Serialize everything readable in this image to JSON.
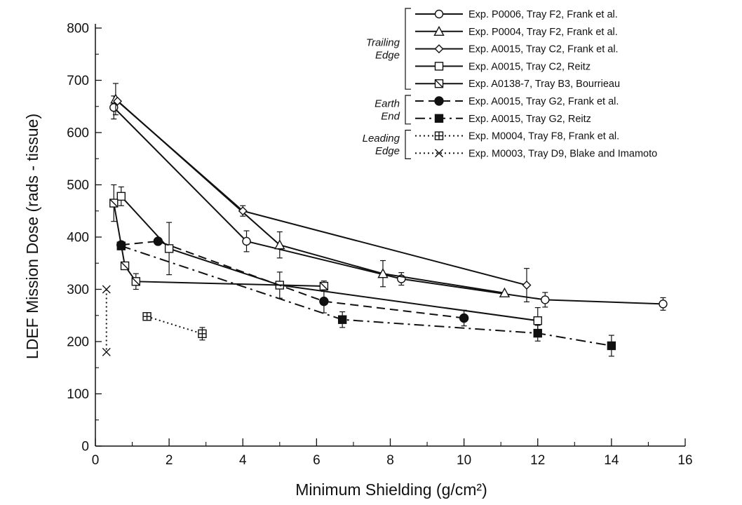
{
  "chart_data": {
    "type": "line",
    "xlabel": "Minimum Shielding (g/cm²)",
    "ylabel": "LDEF Mission Dose (rads - tissue)",
    "xlim": [
      0,
      16
    ],
    "ylim": [
      0,
      800
    ],
    "x_ticks": [
      "0",
      "2",
      "4",
      "6",
      "8",
      "10",
      "12",
      "14",
      "16"
    ],
    "y_ticks": [
      "0",
      "100",
      "200",
      "300",
      "400",
      "500",
      "600",
      "700",
      "800"
    ],
    "grid": false,
    "legend_position": "top-right",
    "legend_groups": [
      {
        "label_lines": [
          "Trailing",
          "Edge"
        ],
        "series": [
          0,
          1,
          2,
          3,
          4
        ]
      },
      {
        "label_lines": [
          "Earth",
          "End"
        ],
        "series": [
          5,
          6
        ]
      },
      {
        "label_lines": [
          "Leading",
          "Edge"
        ],
        "series": [
          7,
          8
        ]
      }
    ],
    "series": [
      {
        "name": "Exp. P0006, Tray F2, Frank et al.",
        "marker": "circle-open",
        "line": "solid",
        "x": [
          0.5,
          4.1,
          8.3,
          12.2,
          15.4
        ],
        "y": [
          648,
          392,
          320,
          280,
          272
        ],
        "err": [
          22,
          20,
          12,
          14,
          12
        ]
      },
      {
        "name": "Exp. P0004, Tray F2, Frank et al.",
        "marker": "triangle-open",
        "line": "solid",
        "x": [
          0.55,
          5.0,
          7.8,
          11.1
        ],
        "y": [
          664,
          385,
          330,
          293
        ],
        "err": [
          30,
          25,
          25,
          0
        ]
      },
      {
        "name": "Exp. A0015, Tray C2, Frank et al.",
        "marker": "diamond-open",
        "line": "solid",
        "x": [
          0.6,
          4.0,
          11.7
        ],
        "y": [
          660,
          450,
          308
        ],
        "err": [
          0,
          10,
          32
        ]
      },
      {
        "name": "Exp. A0015, Tray C2, Reitz",
        "marker": "square-open",
        "line": "solid",
        "x": [
          0.7,
          2.0,
          5.0,
          12.0
        ],
        "y": [
          478,
          378,
          308,
          240
        ],
        "err": [
          18,
          50,
          25,
          25
        ]
      },
      {
        "name": "Exp. A0138-7, Tray B3, Bourrieau",
        "marker": "square-slash",
        "line": "solid",
        "x": [
          0.5,
          0.8,
          1.1,
          6.2
        ],
        "y": [
          465,
          345,
          315,
          306
        ],
        "err": [
          35,
          0,
          15,
          10
        ]
      },
      {
        "name": "Exp. A0015, Tray G2, Frank et al.",
        "marker": "circle-filled",
        "line": "dashed",
        "x": [
          0.7,
          1.7,
          6.2,
          10.0
        ],
        "y": [
          385,
          392,
          277,
          245
        ],
        "err": [
          0,
          0,
          22,
          15
        ]
      },
      {
        "name": "Exp. A0015, Tray G2, Reitz",
        "marker": "square-filled",
        "line": "dashdot",
        "x": [
          0.7,
          6.7,
          12.0,
          14.0
        ],
        "y": [
          383,
          242,
          216,
          192
        ],
        "err": [
          0,
          15,
          15,
          20
        ]
      },
      {
        "name": "Exp. M0004, Tray F8, Frank et al.",
        "marker": "square-plus",
        "line": "dotted",
        "x": [
          1.4,
          2.9
        ],
        "y": [
          248,
          215
        ],
        "err": [
          0,
          12
        ]
      },
      {
        "name": "Exp. M0003, Tray D9, Blake and Imamoto",
        "marker": "x",
        "line": "dotted",
        "x": [
          0.3,
          0.3
        ],
        "y": [
          300,
          180
        ],
        "err": [
          0,
          0
        ]
      }
    ]
  }
}
